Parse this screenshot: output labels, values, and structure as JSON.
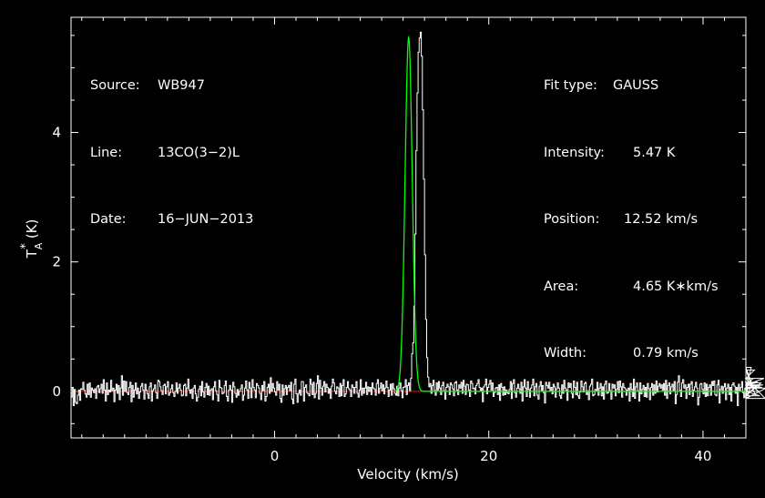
{
  "header": {
    "left": [
      {
        "label": "Source:",
        "value": "WB947"
      },
      {
        "label": "Line:",
        "value": "13CO(3−2)L"
      },
      {
        "label": "Date:",
        "value": "16−JUN−2013"
      }
    ],
    "right": [
      {
        "label": "Fit type:",
        "value": "GAUSS"
      },
      {
        "label": "Intensity:",
        "value": "5.47 K"
      },
      {
        "label": "Position:",
        "value": "12.52 km/s"
      },
      {
        "label": "Area:",
        "value": "4.65 K∗km/s"
      },
      {
        "label": "Width:",
        "value": "0.79 km/s"
      }
    ]
  },
  "chart_data": {
    "type": "line",
    "xlabel": "Velocity (km/s)",
    "ylabel": "T",
    "ylabel_sup": "*",
    "ylabel_sub": "A",
    "ylabel_unit": "(K)",
    "xlim": [
      -19,
      44
    ],
    "ylim": [
      -0.72,
      5.78
    ],
    "xticks": [
      0,
      20,
      40
    ],
    "xtick_labels": [
      "0",
      "20",
      "40"
    ],
    "yticks": [
      0,
      2,
      4
    ],
    "ytick_labels": [
      "0",
      "2",
      "4"
    ],
    "grid": false,
    "colors": {
      "spectrum": "#ffffff",
      "fit": "#00ff00",
      "baseline": "#ff0000",
      "axes": "#ffffff"
    },
    "series": [
      {
        "style": "histogram",
        "x_start": -19.0,
        "x_step": 0.1,
        "values": [
          -0.09,
          0.06,
          -0.22,
          0.03,
          -0.17,
          -0.19,
          -0.06,
          0.02,
          -0.14,
          0.04,
          0.03,
          0.14,
          0.02,
          -0.04,
          -0.09,
          0.11,
          -0.05,
          0.13,
          -0.09,
          0.05,
          0.02,
          -0.02,
          0.04,
          -0.11,
          0.07,
          0.09,
          -0.02,
          0.04,
          0.11,
          -0.03,
          0.18,
          0.02,
          -0.15,
          0.13,
          -0.05,
          0.02,
          -0.01,
          0.17,
          0.01,
          0.05,
          -0.16,
          0.02,
          0.11,
          -0.03,
          0.09,
          -0.13,
          0.05,
          0.24,
          -0.06,
          0.16,
          0.0,
          0.15,
          -0.02,
          -0.05,
          0.06,
          0.14,
          -0.16,
          0.09,
          -0.09,
          0.02,
          0.13,
          -0.04,
          0.05,
          -0.11,
          -0.01,
          0.08,
          0.12,
          0.02,
          -0.12,
          0.11,
          0.02,
          -0.04,
          -0.11,
          0.07,
          0.13,
          -0.15,
          0.01,
          0.04,
          0.1,
          -0.02,
          -0.11,
          0.17,
          0.15,
          0.07,
          0.01,
          -0.05,
          0.09,
          0.11,
          -0.04,
          0.07,
          0.15,
          -0.06,
          -0.02,
          0.04,
          0.1,
          -0.02,
          -0.08,
          0.0,
          0.13,
          -0.03,
          0.05,
          0.11,
          0.02,
          -0.07,
          -0.06,
          0.09,
          0.11,
          -0.07,
          0.05,
          0.19,
          0.02,
          -0.03,
          0.03,
          -0.11,
          0.05,
          0.09,
          -0.04,
          -0.15,
          -0.09,
          0.03,
          0.08,
          -0.07,
          0.15,
          -0.01,
          -0.09,
          0.06,
          0.12,
          -0.05,
          0.08,
          -0.06,
          0.02,
          0.04,
          -0.13,
          0.07,
          0.15,
          0.01,
          -0.05,
          -0.15,
          0.17,
          0.06,
          0.05,
          -0.04,
          -0.02,
          0.09,
          0.16,
          -0.08,
          -0.15,
          0.02,
          0.09,
          0.02,
          -0.17,
          0.14,
          0.07,
          -0.03,
          -0.09,
          0.03,
          -0.06,
          0.0,
          0.04,
          0.1,
          -0.14,
          -0.06,
          0.05,
          0.16,
          0.02,
          -0.11,
          0.14,
          0.05,
          -0.1,
          0.18,
          0.06,
          0.02,
          -0.1,
          0.12,
          0.09,
          0.05,
          -0.03,
          -0.13,
          0.09,
          0.01,
          0.15,
          -0.15,
          -0.08,
          0.06,
          0.11,
          -0.03,
          0.21,
          0.0,
          0.12,
          0.05,
          -0.01,
          -0.06,
          0.15,
          0.02,
          0.11,
          -0.11,
          -0.17,
          0.1,
          -0.06,
          0.04,
          0.09,
          -0.05,
          0.06,
          0.09,
          0.01,
          0.14,
          -0.12,
          -0.19,
          0.11,
          0.19,
          -0.04,
          -0.17,
          -0.03,
          0.02,
          -0.06,
          0.15,
          0.15,
          -0.15,
          0.06,
          0.1,
          -0.02,
          -0.04,
          -0.07,
          0.19,
          0.11,
          -0.05,
          0.14,
          -0.1,
          -0.03,
          0.12,
          0.24,
          -0.12,
          0.17,
          0.05,
          -0.06,
          0.08,
          0.15,
          -0.01,
          0.11,
          0.06,
          -0.03,
          0.04,
          -0.11,
          0.08,
          0.19,
          0.13,
          0.0,
          -0.04,
          0.07,
          0.05,
          -0.08,
          0.12,
          -0.07,
          0.09,
          0.18,
          -0.08,
          -0.04,
          0.06,
          0.15,
          0.04,
          0.02,
          -0.08,
          0.1,
          0.06,
          -0.03,
          0.06,
          0.15,
          -0.03,
          -0.09,
          0.02,
          0.18,
          -0.06,
          0.05,
          -0.03,
          0.05,
          0.14,
          -0.05,
          0.07,
          0.0,
          0.06,
          -0.05,
          0.13,
          0.05,
          0.03,
          -0.06,
          0.12,
          0.18,
          -0.03,
          0.05,
          0.13,
          0.01,
          0.1,
          -0.04,
          0.05,
          0.16,
          0.06,
          -0.08,
          0.02,
          0.11,
          -0.06,
          0.12,
          0.04,
          -0.03,
          -0.06,
          0.08,
          -0.07,
          0.05,
          0.13,
          0.01,
          -0.1,
          0.06,
          0.07,
          0.18,
          -0.05,
          0.09,
          0.13,
          0.01,
          0.2,
          0.58,
          0.75,
          1.32,
          2.43,
          3.72,
          4.61,
          5.24,
          5.46,
          5.55,
          5.18,
          4.35,
          3.28,
          2.11,
          1.11,
          0.52,
          0.22,
          0.07,
          0.12,
          -0.03,
          0.09,
          0.17,
          0.01,
          -0.06,
          0.13,
          0.02,
          0.15,
          0.05,
          -0.05,
          0.09,
          0.14,
          0.01,
          -0.12,
          0.06,
          0.11,
          0.07,
          -0.05,
          0.13,
          0.1,
          0.04,
          -0.07,
          0.13,
          0.15,
          0.02,
          -0.05,
          0.1,
          0.05,
          0.14,
          -0.03,
          0.17,
          0.08,
          -0.05,
          0.11,
          0.1,
          0.02,
          -0.08,
          0.16,
          0.12,
          0.04,
          0.05,
          -0.04,
          0.09,
          0.12,
          0.18,
          0.06,
          0.0,
          0.05,
          -0.16,
          0.07,
          0.1,
          0.19,
          -0.04,
          0.06,
          0.11,
          0.17,
          0.02,
          0.13,
          -0.08,
          -0.02,
          0.05,
          0.06,
          -0.05,
          0.1,
          -0.14,
          0.12,
          0.06,
          -0.06,
          0.07,
          -0.05,
          0.02,
          -0.02,
          -0.04,
          0.03,
          0.15,
          -0.11,
          0.12,
          0.18,
          -0.02,
          -0.09,
          0.05,
          0.11,
          0.04,
          -0.03,
          0.14,
          -0.15,
          0.07,
          0.18,
          0.05,
          -0.08,
          0.15,
          0.03,
          -0.09,
          0.05,
          0.1,
          0.19,
          -0.07,
          0.07,
          0.12,
          -0.06,
          -0.12,
          0.08,
          0.15,
          0.0,
          0.09,
          -0.02,
          -0.18,
          0.14,
          0.09,
          0.05,
          0.14,
          0.0,
          0.06,
          -0.04,
          0.11,
          0.07,
          -0.09,
          0.04,
          0.13,
          0.05,
          -0.07,
          -0.11,
          0.1,
          -0.03,
          0.17,
          0.05,
          0.02,
          -0.14,
          0.13,
          0.06,
          0.12,
          -0.03,
          -0.1,
          0.16,
          0.06,
          -0.05,
          0.14,
          -0.07,
          -0.11,
          -0.01,
          0.16,
          0.07,
          -0.01,
          0.12,
          0.14,
          -0.05,
          0.01,
          -0.13,
          0.08,
          0.11,
          0.19,
          -0.07,
          -0.05,
          0.03,
          0.0,
          0.14,
          -0.06,
          0.05,
          0.12,
          -0.07,
          0.07,
          -0.12,
          0.11,
          0.16,
          -0.03,
          -0.02,
          0.12,
          0.01,
          -0.12,
          0.11,
          0.05,
          0.1,
          -0.07,
          0.03,
          0.15,
          -0.02,
          0.16,
          0.07,
          -0.09,
          0.12,
          0.06,
          0.04,
          -0.06,
          0.02,
          0.05,
          -0.15,
          0.12,
          0.03,
          -0.08,
          0.19,
          -0.11,
          0.07,
          0.13,
          0.01,
          -0.15,
          0.13,
          -0.04,
          0.03,
          0.09,
          -0.08,
          0.06,
          -0.09,
          0.12,
          0.04,
          -0.13,
          0.06,
          0.12,
          -0.06,
          0.1,
          -0.03,
          0.16,
          -0.01,
          0.08,
          0.12,
          0.05,
          0.1,
          0.02,
          0.12,
          -0.06,
          0.17,
          -0.11,
          0.09,
          0.13,
          -0.04,
          0.07,
          0.11,
          0.01,
          0.15,
          -0.19,
          -0.05,
          0.14,
          0.24,
          0.02,
          -0.08,
          0.13,
          0.18,
          0.05,
          0.1,
          -0.11,
          0.06,
          0.11,
          -0.05,
          0.11,
          0.15,
          -0.08,
          0.02,
          0.07,
          0.14,
          0.05,
          -0.21,
          -0.09,
          0.11,
          0.12,
          0.03,
          -0.04,
          0.13,
          -0.08,
          0.11,
          -0.07,
          0.06,
          0.1,
          -0.06,
          0.15,
          0.09,
          0.16,
          -0.05,
          -0.07,
          0.1,
          0.17,
          -0.18,
          0.03,
          0.08,
          -0.03,
          0.07,
          0.12,
          -0.13,
          0.05,
          0.11,
          -0.05,
          0.06,
          -0.15,
          0.1,
          0.13,
          0.08,
          -0.03,
          0.06,
          -0.22,
          0.11,
          0.01,
          0.06,
          0.15,
          -0.02,
          -0.1,
          0.05,
          0.14,
          -0.06,
          0.12,
          -0.09,
          0.04,
          0.37,
          0.1,
          0.2,
          0.33,
          -0.07,
          0.09,
          0.14,
          0.0,
          -0.07,
          0.13,
          0.06,
          0.1,
          0.2,
          -0.11,
          0.05
        ]
      }
    ],
    "fit": {
      "type": "GAUSS",
      "amplitude": 5.47,
      "center": 12.52,
      "fwhm": 0.79
    },
    "baseline": 0
  }
}
